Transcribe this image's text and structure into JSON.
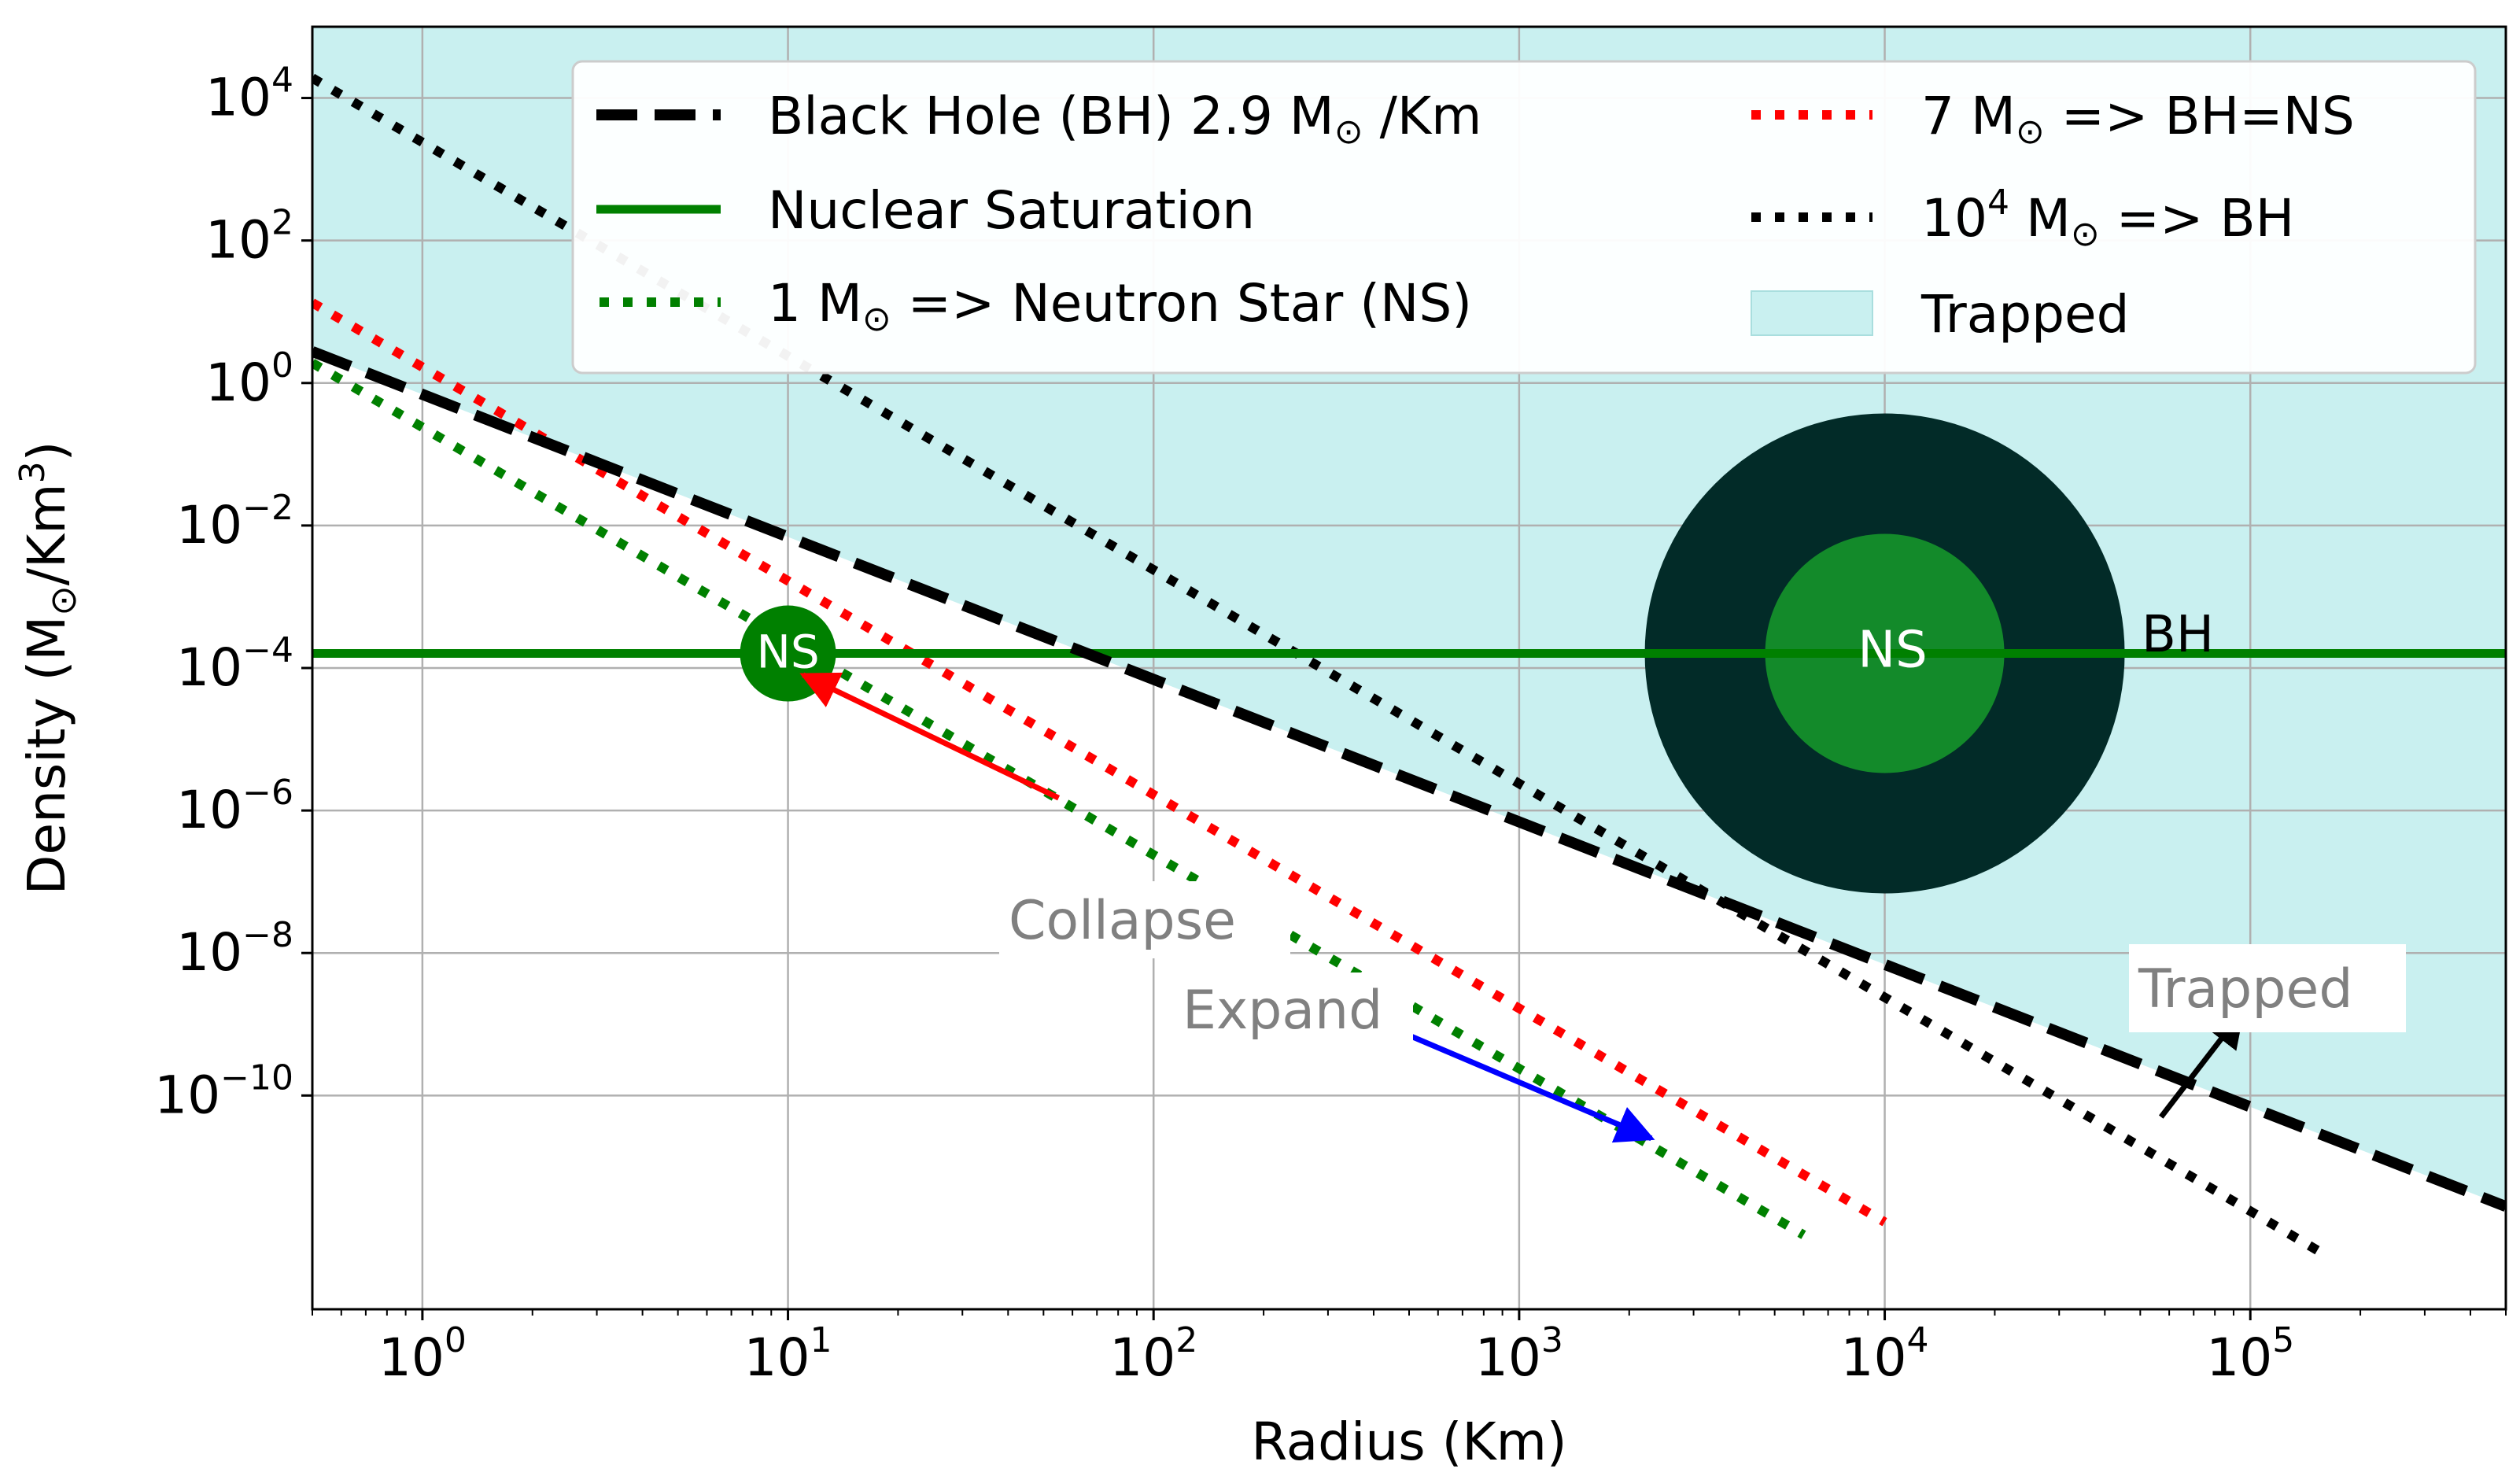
{
  "chart_data": {
    "type": "line",
    "title": "",
    "xlabel": "Radius (Km)",
    "ylabel": "Density (M⊙/Km³)",
    "xscale": "log",
    "yscale": "log",
    "xlim": [
      0.5,
      500000
    ],
    "ylim": [
      1e-13,
      100000.0
    ],
    "xticks": [
      {
        "value": 1,
        "base": "10",
        "exp": "0"
      },
      {
        "value": 10,
        "base": "10",
        "exp": "1"
      },
      {
        "value": 100,
        "base": "10",
        "exp": "2"
      },
      {
        "value": 1000,
        "base": "10",
        "exp": "3"
      },
      {
        "value": 10000,
        "base": "10",
        "exp": "4"
      },
      {
        "value": 100000,
        "base": "10",
        "exp": "5"
      }
    ],
    "yticks": [
      {
        "value": 1e-10,
        "base": "10",
        "exp": "−10"
      },
      {
        "value": 1e-08,
        "base": "10",
        "exp": "−8"
      },
      {
        "value": 1e-06,
        "base": "10",
        "exp": "−6"
      },
      {
        "value": 0.0001,
        "base": "10",
        "exp": "−4"
      },
      {
        "value": 0.01,
        "base": "10",
        "exp": "−2"
      },
      {
        "value": 1,
        "base": "10",
        "exp": "0"
      },
      {
        "value": 100,
        "base": "10",
        "exp": "2"
      },
      {
        "value": 10000,
        "base": "10",
        "exp": "4"
      }
    ],
    "grid": true,
    "trapped_color": "#c9f0f0",
    "series": [
      {
        "id": "bh",
        "name": "Black Hole (BH) 2.9 M",
        "name_suffix": " /Km",
        "formula": "rho = 0.69248 * r^-2",
        "coef": 0.69248,
        "power": -2,
        "color": "#000000",
        "style": "dashed",
        "x": [
          0.5,
          500000
        ]
      },
      {
        "id": "nuc",
        "name": "Nuclear Saturation",
        "formula": "rho = 1.6e-4",
        "value": 0.00016,
        "color": "#008000",
        "style": "solid",
        "x": [
          0.5,
          500000
        ]
      },
      {
        "id": "ns1",
        "name": "1 M",
        "name_suffix": " => Neutron Star (NS)",
        "formula": "rho = 0.2387 * r^-3",
        "coef": 0.2387,
        "power": -3,
        "color": "#008000",
        "style": "dotted",
        "x": [
          0.5,
          6000
        ]
      },
      {
        "id": "bh7",
        "name": "7 M",
        "name_suffix": " => BH=NS",
        "formula": "rho = 1.671 * r^-3",
        "coef": 1.671,
        "power": -3,
        "color": "#ff0000",
        "style": "dotted",
        "x": [
          0.5,
          10000
        ]
      },
      {
        "id": "bh1e4",
        "name_base": "10",
        "name_exp": "4",
        "name": " M",
        "name_suffix": " => BH",
        "formula": "rho = 2387 * r^-3",
        "coef": 2387,
        "power": -3,
        "color": "#000000",
        "style": "dotted",
        "x": [
          0.5,
          160000
        ]
      }
    ],
    "legend": {
      "position": "top-right",
      "trapped_label": "Trapped"
    },
    "annotations": {
      "ns_marker_label": "NS",
      "bh_diagram_label": "BH",
      "ns_diagram_label": "NS",
      "collapse_label": "Collapse",
      "expand_label": "Expand",
      "trapped_box_label": "Trapped",
      "ns_marker": {
        "x": 10,
        "y": 0.00016,
        "color": "#008000"
      },
      "diagram_center": {
        "x": 10000,
        "y": 0.00016
      },
      "bh_outer_color": "#022b28",
      "ns_inner_color": "#138a2a",
      "collapse_arrow": {
        "from": [
          55,
          1.5e-06
        ],
        "to": [
          11,
          8e-05
        ],
        "color": "#ff0000"
      },
      "expand_arrow": {
        "from": [
          390,
          1.2e-09
        ],
        "to": [
          2300,
          2.5e-11
        ],
        "color": "#0000ff"
      },
      "trapped_arrow": {
        "from": [
          57000,
          5e-11
        ],
        "to": [
          95000,
          1.5e-09
        ],
        "color": "#000000"
      }
    },
    "sun_symbol": "⊙"
  }
}
